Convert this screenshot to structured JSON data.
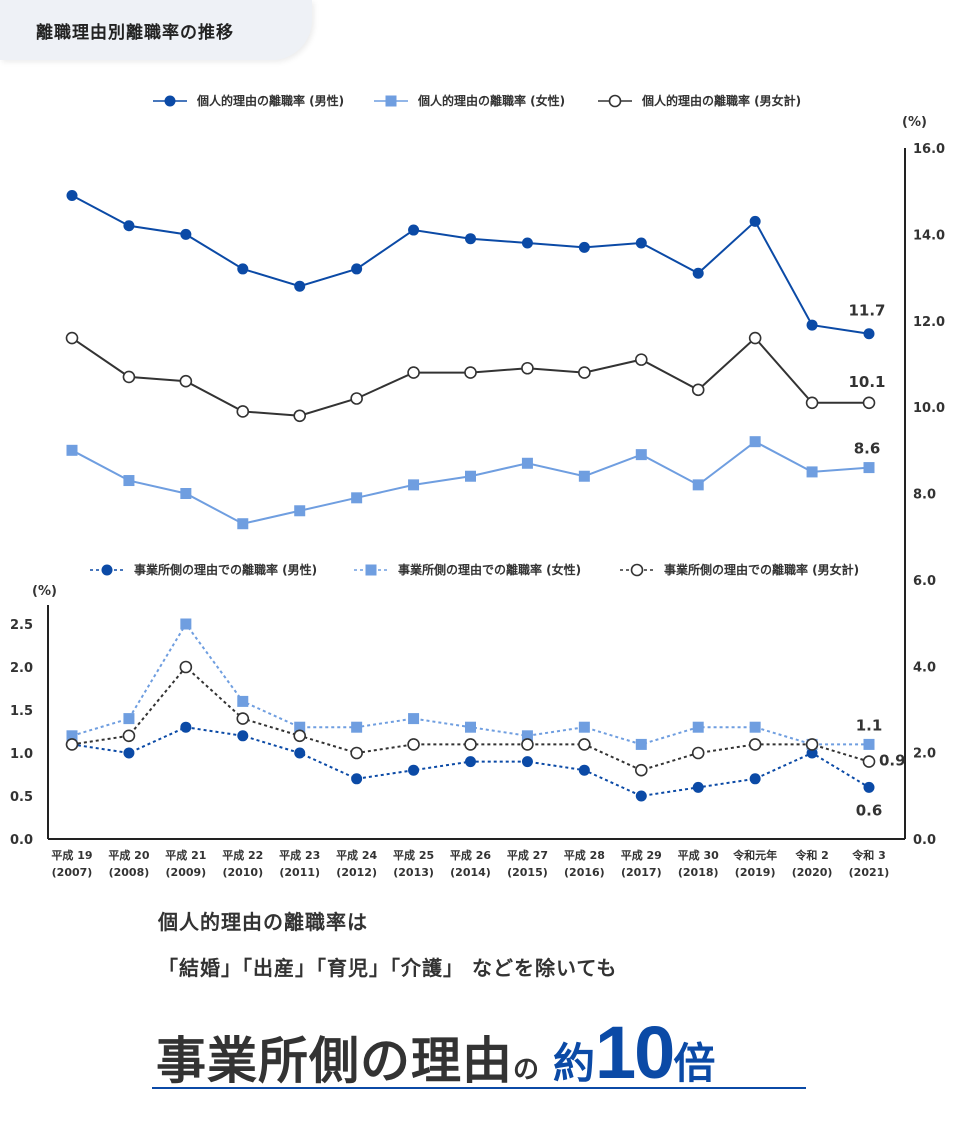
{
  "header": {
    "title": "離職理由別離職率の推移"
  },
  "colors": {
    "male": "#0b4aa6",
    "female": "#6f9ee0",
    "total": "#333333"
  },
  "chart_data": [
    {
      "type": "line",
      "unit": "(%)",
      "ylim": [
        0,
        16
      ],
      "yticks": [
        "0.0",
        "2.0",
        "4.0",
        "6.0",
        "8.0",
        "10.0",
        "12.0",
        "14.0",
        "16.0"
      ],
      "legend_position": "top",
      "categories": [
        "平成 19",
        "平成 20",
        "平成 21",
        "平成 22",
        "平成 23",
        "平成 24",
        "平成 25",
        "平成 26",
        "平成 27",
        "平成 28",
        "平成 29",
        "平成 30",
        "令和元年",
        "令和 2",
        "令和 3"
      ],
      "categories_sub": [
        "(2007)",
        "(2008)",
        "(2009)",
        "(2010)",
        "(2011)",
        "(2012)",
        "(2013)",
        "(2014)",
        "(2015)",
        "(2016)",
        "(2017)",
        "(2018)",
        "(2019)",
        "(2020)",
        "(2021)"
      ],
      "series": [
        {
          "name": "個人的理由の離職率 (男性)",
          "key": "male",
          "values": [
            14.9,
            14.2,
            14.0,
            13.2,
            12.8,
            13.2,
            14.1,
            13.9,
            13.8,
            13.7,
            13.8,
            13.1,
            14.3,
            11.9,
            11.7
          ],
          "last_label": "11.7"
        },
        {
          "name": "個人的理由の離職率 (女性)",
          "key": "female",
          "values": [
            9.0,
            8.3,
            8.0,
            7.3,
            7.6,
            7.9,
            8.2,
            8.4,
            8.7,
            8.4,
            8.9,
            8.2,
            9.2,
            8.5,
            8.6
          ],
          "last_label": "8.6"
        },
        {
          "name": "個人的理由の離職率 (男女計)",
          "key": "total",
          "values": [
            11.6,
            10.7,
            10.6,
            9.9,
            9.8,
            10.2,
            10.8,
            10.8,
            10.9,
            10.8,
            11.1,
            10.4,
            11.6,
            10.1,
            10.1
          ],
          "last_label": "10.1"
        }
      ]
    },
    {
      "type": "line",
      "unit": "(%)",
      "ylim": [
        0,
        2.5
      ],
      "yticks": [
        "0.0",
        "0.5",
        "1.0",
        "1.5",
        "2.0",
        "2.5"
      ],
      "legend_position": "top",
      "series": [
        {
          "name": "事業所側の理由での離職率 (男性)",
          "key": "male",
          "values": [
            1.1,
            1.0,
            1.3,
            1.2,
            1.0,
            0.7,
            0.8,
            0.9,
            0.9,
            0.8,
            0.5,
            0.6,
            0.7,
            1.0,
            0.6
          ],
          "last_label": "0.6"
        },
        {
          "name": "事業所側の理由での離職率 (女性)",
          "key": "female",
          "values": [
            1.2,
            1.4,
            2.5,
            1.6,
            1.3,
            1.3,
            1.4,
            1.3,
            1.2,
            1.3,
            1.1,
            1.3,
            1.3,
            1.1,
            1.1
          ],
          "last_label": "1.1"
        },
        {
          "name": "事業所側の理由での離職率 (男女計)",
          "key": "total",
          "values": [
            1.1,
            1.2,
            2.0,
            1.4,
            1.2,
            1.0,
            1.1,
            1.1,
            1.1,
            1.1,
            0.8,
            1.0,
            1.1,
            1.1,
            0.9
          ],
          "last_label": "0.9"
        }
      ]
    }
  ],
  "caption": {
    "line1": "個人的理由の離職率は",
    "line2": "「結婚」「出産」「育児」「介護」 などを除いても"
  },
  "headline": {
    "main": "事業所側の理由",
    "particle": "の",
    "prefix": "約",
    "number": "10",
    "suffix": "倍"
  }
}
